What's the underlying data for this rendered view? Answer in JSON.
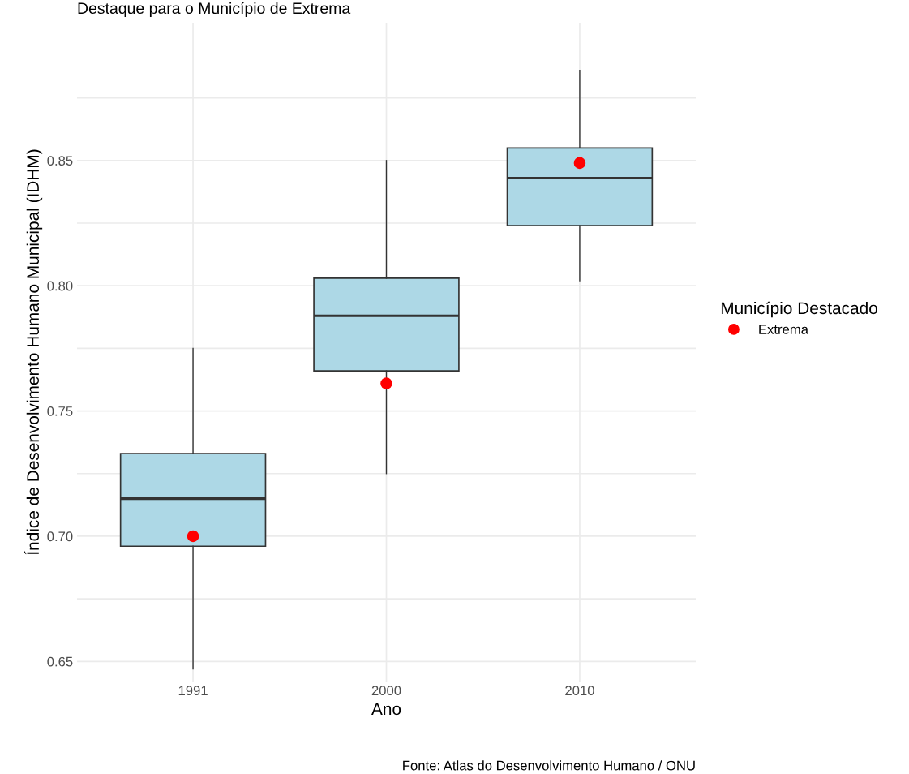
{
  "chart_data": {
    "type": "box",
    "subtitle": "Destaque para o Município de Extrema",
    "xlabel": "Ano",
    "ylabel": "Índice de Desenvolvimento Humano Municipal (IDHM)",
    "legend_title": "Município Destacado",
    "categories": [
      "1991",
      "2000",
      "2010"
    ],
    "series": [
      {
        "type": "box",
        "color": "#add8e6",
        "boxes": [
          {
            "low": 0.647,
            "q1": 0.696,
            "median": 0.715,
            "q3": 0.733,
            "high": 0.775
          },
          {
            "low": 0.725,
            "q1": 0.766,
            "median": 0.788,
            "q3": 0.803,
            "high": 0.85
          },
          {
            "low": 0.802,
            "q1": 0.824,
            "median": 0.843,
            "q3": 0.855,
            "high": 0.886
          }
        ]
      },
      {
        "type": "scatter",
        "name": "Extrema",
        "color": "#ff0000",
        "values": [
          0.7,
          0.761,
          0.849
        ]
      }
    ],
    "ylim": [
      0.642,
      0.905
    ],
    "yticks": [
      0.65,
      {
        "value": 0.675,
        "label": null
      },
      {
        "value": 0.7,
        "label": "0.70"
      },
      {
        "value": 0.725,
        "label": null
      },
      0.75,
      {
        "value": 0.775,
        "label": null
      },
      {
        "value": 0.8,
        "label": "0.80"
      },
      {
        "value": 0.825,
        "label": null
      },
      0.85,
      {
        "value": 0.875,
        "label": null
      }
    ],
    "grid": true,
    "legend": "right",
    "marker": "circle",
    "annotations": [
      "Fonte: Atlas do Desenvolvimento Humano / ONU"
    ]
  }
}
